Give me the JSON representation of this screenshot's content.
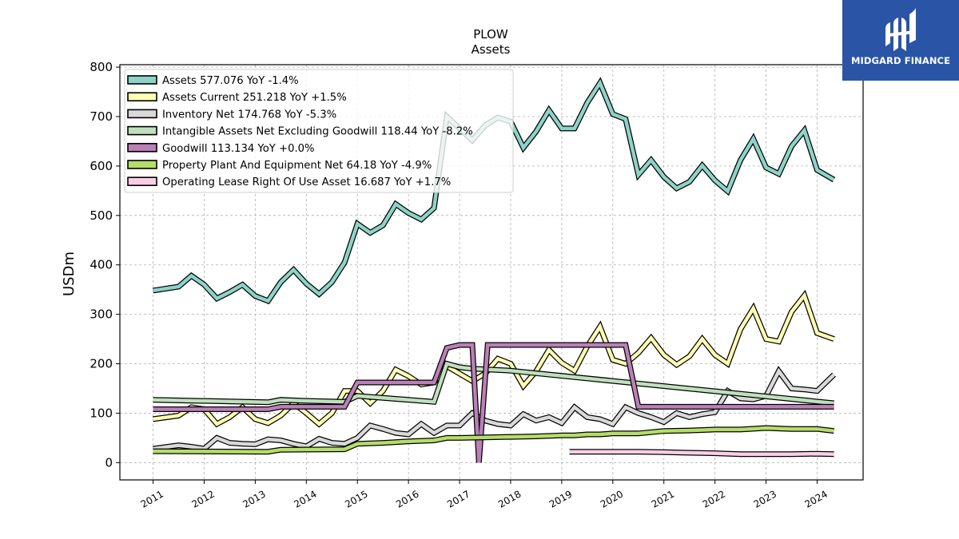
{
  "brand": {
    "logo_text": "MIDGARD FINANCE",
    "logo_color": "#2a55a6"
  },
  "chart_data": {
    "type": "line",
    "title": "PLOW",
    "subtitle": "Assets",
    "xlabel": "",
    "ylabel": "USDm",
    "xlim": [
      2010.35,
      2024.9
    ],
    "ylim": [
      -35,
      805
    ],
    "x_ticks": [
      "2011",
      "2012",
      "2013",
      "2014",
      "2015",
      "2016",
      "2017",
      "2018",
      "2019",
      "2020",
      "2021",
      "2022",
      "2023",
      "2024"
    ],
    "y_ticks": [
      0,
      100,
      200,
      300,
      400,
      500,
      600,
      700,
      800
    ],
    "grid": true,
    "legend_position": "top-left",
    "series": [
      {
        "name": "Assets",
        "legend_label": "Assets  577.076 YoY -1.4%",
        "color": "#8dd3c7",
        "points": [
          [
            2011.0,
            348
          ],
          [
            2011.5,
            356
          ],
          [
            2011.75,
            378
          ],
          [
            2012.0,
            360
          ],
          [
            2012.25,
            332
          ],
          [
            2012.5,
            345
          ],
          [
            2012.75,
            360
          ],
          [
            2013.0,
            337
          ],
          [
            2013.25,
            327
          ],
          [
            2013.5,
            365
          ],
          [
            2013.75,
            390
          ],
          [
            2014.0,
            362
          ],
          [
            2014.25,
            341
          ],
          [
            2014.5,
            365
          ],
          [
            2014.75,
            405
          ],
          [
            2015.0,
            483
          ],
          [
            2015.25,
            465
          ],
          [
            2015.5,
            480
          ],
          [
            2015.75,
            523
          ],
          [
            2016.0,
            505
          ],
          [
            2016.25,
            492
          ],
          [
            2016.5,
            515
          ],
          [
            2016.75,
            700
          ],
          [
            2017.0,
            676
          ],
          [
            2017.25,
            652
          ],
          [
            2017.5,
            682
          ],
          [
            2017.75,
            698
          ],
          [
            2018.0,
            690
          ],
          [
            2018.25,
            637
          ],
          [
            2018.5,
            670
          ],
          [
            2018.75,
            713
          ],
          [
            2019.0,
            676
          ],
          [
            2019.25,
            676
          ],
          [
            2019.5,
            728
          ],
          [
            2019.75,
            768
          ],
          [
            2020.0,
            705
          ],
          [
            2020.25,
            695
          ],
          [
            2020.5,
            582
          ],
          [
            2020.75,
            612
          ],
          [
            2021.0,
            578
          ],
          [
            2021.25,
            555
          ],
          [
            2021.5,
            568
          ],
          [
            2021.75,
            601
          ],
          [
            2022.0,
            571
          ],
          [
            2022.25,
            549
          ],
          [
            2022.5,
            612
          ],
          [
            2022.75,
            655
          ],
          [
            2023.0,
            597
          ],
          [
            2023.25,
            584
          ],
          [
            2023.5,
            640
          ],
          [
            2023.75,
            672
          ],
          [
            2024.0,
            592
          ],
          [
            2024.33,
            572
          ]
        ]
      },
      {
        "name": "Assets Current",
        "legend_label": "Assets Current  251.218 YoY +1.5%",
        "color": "#ffffb3",
        "points": [
          [
            2011.0,
            88
          ],
          [
            2011.5,
            95
          ],
          [
            2011.75,
            112
          ],
          [
            2012.0,
            108
          ],
          [
            2012.25,
            78
          ],
          [
            2012.5,
            92
          ],
          [
            2012.75,
            112
          ],
          [
            2013.0,
            88
          ],
          [
            2013.25,
            80
          ],
          [
            2013.5,
            95
          ],
          [
            2013.75,
            120
          ],
          [
            2014.0,
            100
          ],
          [
            2014.25,
            78
          ],
          [
            2014.5,
            100
          ],
          [
            2014.75,
            145
          ],
          [
            2015.0,
            145
          ],
          [
            2015.25,
            120
          ],
          [
            2015.5,
            145
          ],
          [
            2015.75,
            188
          ],
          [
            2016.0,
            175
          ],
          [
            2016.25,
            158
          ],
          [
            2016.5,
            162
          ],
          [
            2016.75,
            195
          ],
          [
            2017.0,
            180
          ],
          [
            2017.25,
            165
          ],
          [
            2017.5,
            180
          ],
          [
            2017.75,
            210
          ],
          [
            2018.0,
            200
          ],
          [
            2018.25,
            155
          ],
          [
            2018.5,
            185
          ],
          [
            2018.75,
            228
          ],
          [
            2019.0,
            202
          ],
          [
            2019.25,
            186
          ],
          [
            2019.5,
            235
          ],
          [
            2019.75,
            275
          ],
          [
            2020.0,
            208
          ],
          [
            2020.25,
            200
          ],
          [
            2020.5,
            222
          ],
          [
            2020.75,
            252
          ],
          [
            2021.0,
            218
          ],
          [
            2021.25,
            198
          ],
          [
            2021.5,
            215
          ],
          [
            2021.75,
            250
          ],
          [
            2022.0,
            218
          ],
          [
            2022.25,
            200
          ],
          [
            2022.5,
            270
          ],
          [
            2022.75,
            312
          ],
          [
            2023.0,
            250
          ],
          [
            2023.25,
            245
          ],
          [
            2023.5,
            305
          ],
          [
            2023.75,
            338
          ],
          [
            2024.0,
            262
          ],
          [
            2024.33,
            250
          ]
        ]
      },
      {
        "name": "Inventory Net",
        "legend_label": "Inventory Net  174.768 YoY -5.3%",
        "color": "#d9d9d9",
        "points": [
          [
            2011.0,
            28
          ],
          [
            2011.5,
            35
          ],
          [
            2011.75,
            32
          ],
          [
            2012.0,
            28
          ],
          [
            2012.25,
            50
          ],
          [
            2012.5,
            40
          ],
          [
            2012.75,
            38
          ],
          [
            2013.0,
            37
          ],
          [
            2013.25,
            47
          ],
          [
            2013.5,
            45
          ],
          [
            2013.75,
            38
          ],
          [
            2014.0,
            33
          ],
          [
            2014.25,
            48
          ],
          [
            2014.5,
            40
          ],
          [
            2014.75,
            38
          ],
          [
            2015.0,
            50
          ],
          [
            2015.25,
            75
          ],
          [
            2015.5,
            68
          ],
          [
            2015.75,
            60
          ],
          [
            2016.0,
            57
          ],
          [
            2016.25,
            78
          ],
          [
            2016.5,
            60
          ],
          [
            2016.75,
            75
          ],
          [
            2017.0,
            75
          ],
          [
            2017.25,
            100
          ],
          [
            2017.5,
            85
          ],
          [
            2017.75,
            78
          ],
          [
            2018.0,
            75
          ],
          [
            2018.25,
            98
          ],
          [
            2018.5,
            85
          ],
          [
            2018.75,
            92
          ],
          [
            2019.0,
            80
          ],
          [
            2019.25,
            112
          ],
          [
            2019.5,
            92
          ],
          [
            2019.75,
            88
          ],
          [
            2020.0,
            78
          ],
          [
            2020.25,
            112
          ],
          [
            2020.5,
            100
          ],
          [
            2020.75,
            92
          ],
          [
            2021.0,
            82
          ],
          [
            2021.25,
            100
          ],
          [
            2021.5,
            92
          ],
          [
            2021.75,
            98
          ],
          [
            2022.0,
            102
          ],
          [
            2022.25,
            145
          ],
          [
            2022.5,
            130
          ],
          [
            2022.75,
            128
          ],
          [
            2023.0,
            135
          ],
          [
            2023.25,
            185
          ],
          [
            2023.5,
            150
          ],
          [
            2023.75,
            148
          ],
          [
            2024.0,
            145
          ],
          [
            2024.33,
            178
          ]
        ]
      },
      {
        "name": "Intangible Assets Net Excluding Goodwill",
        "legend_label": "Intangible Assets Net Excluding Goodwill  118.44 YoY -8.2%",
        "color": "#bfe0bc",
        "points": [
          [
            2011.0,
            127
          ],
          [
            2013.25,
            122
          ],
          [
            2013.5,
            127
          ],
          [
            2014.0,
            125
          ],
          [
            2014.75,
            123
          ],
          [
            2015.0,
            135
          ],
          [
            2016.5,
            123
          ],
          [
            2016.75,
            200
          ],
          [
            2017.0,
            193
          ],
          [
            2017.25,
            190
          ],
          [
            2018.0,
            186
          ],
          [
            2024.33,
            120
          ]
        ]
      },
      {
        "name": "Goodwill",
        "legend_label": "Goodwill  113.134 YoY +0.0%",
        "color": "#bb80b8",
        "points": [
          [
            2011.0,
            108
          ],
          [
            2013.25,
            108
          ],
          [
            2013.5,
            113
          ],
          [
            2014.75,
            113
          ],
          [
            2015.0,
            162
          ],
          [
            2016.5,
            162
          ],
          [
            2016.75,
            232
          ],
          [
            2017.0,
            238
          ],
          [
            2017.25,
            238
          ],
          [
            2017.38,
            0
          ],
          [
            2017.55,
            238
          ],
          [
            2020.25,
            238
          ],
          [
            2020.5,
            113
          ],
          [
            2024.33,
            113
          ]
        ]
      },
      {
        "name": "Property Plant And Equipment Net",
        "legend_label": "Property Plant And Equipment Net  64.18 YoY -4.9%",
        "color": "#b3de69",
        "points": [
          [
            2011.0,
            23
          ],
          [
            2013.25,
            22
          ],
          [
            2013.5,
            26
          ],
          [
            2014.75,
            27
          ],
          [
            2015.0,
            38
          ],
          [
            2015.5,
            40
          ],
          [
            2016.0,
            43
          ],
          [
            2016.5,
            45
          ],
          [
            2016.75,
            50
          ],
          [
            2017.0,
            50
          ],
          [
            2017.5,
            51
          ],
          [
            2018.0,
            52
          ],
          [
            2018.5,
            53
          ],
          [
            2019.0,
            55
          ],
          [
            2019.25,
            55
          ],
          [
            2019.5,
            57
          ],
          [
            2019.75,
            57
          ],
          [
            2020.0,
            59
          ],
          [
            2020.5,
            59
          ],
          [
            2021.0,
            64
          ],
          [
            2021.5,
            65
          ],
          [
            2022.0,
            67
          ],
          [
            2022.5,
            67
          ],
          [
            2023.0,
            70
          ],
          [
            2023.5,
            68
          ],
          [
            2024.0,
            68
          ],
          [
            2024.33,
            64
          ]
        ]
      },
      {
        "name": "Operating Lease Right Of Use Asset",
        "legend_label": "Operating Lease Right Of Use Asset  16.687 YoY +1.7%",
        "color": "#fccde5",
        "points": [
          [
            2019.15,
            22
          ],
          [
            2019.5,
            22
          ],
          [
            2020.0,
            22
          ],
          [
            2020.5,
            22
          ],
          [
            2021.0,
            21
          ],
          [
            2021.5,
            20
          ],
          [
            2022.0,
            19
          ],
          [
            2022.5,
            17
          ],
          [
            2023.0,
            17
          ],
          [
            2023.5,
            17
          ],
          [
            2024.0,
            18
          ],
          [
            2024.33,
            17
          ]
        ]
      }
    ]
  }
}
